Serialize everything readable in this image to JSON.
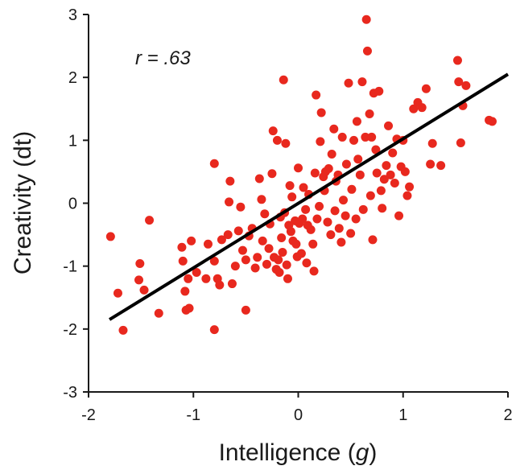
{
  "chart_data": {
    "type": "scatter",
    "title": "",
    "xlabel_prefix": "Intelligence (",
    "xlabel_symbol": "g",
    "xlabel_suffix": ")",
    "ylabel": "Creativity (dt)",
    "annotation_r": "r",
    "annotation_value": " = .63",
    "xlim": [
      -2,
      2
    ],
    "ylim": [
      -3,
      3
    ],
    "x_ticks": [
      {
        "value": -2,
        "label": "-2"
      },
      {
        "value": -1,
        "label": "-1"
      },
      {
        "value": 0,
        "label": "0"
      },
      {
        "value": 1,
        "label": "1"
      },
      {
        "value": 2,
        "label": "2"
      }
    ],
    "y_ticks": [
      {
        "value": -3,
        "label": "-3"
      },
      {
        "value": -2,
        "label": "-2"
      },
      {
        "value": -1,
        "label": "-1"
      },
      {
        "value": 0,
        "label": "0"
      },
      {
        "value": 1,
        "label": "1"
      },
      {
        "value": 2,
        "label": "2"
      },
      {
        "value": 3,
        "label": "3"
      }
    ],
    "grid": false,
    "point_color": "#e8281e",
    "line_color": "#000000",
    "regression_line": {
      "x": [
        -1.8,
        2.0
      ],
      "y": [
        -1.85,
        2.05
      ]
    },
    "points": [
      [
        -1.79,
        -0.53
      ],
      [
        -1.72,
        -1.43
      ],
      [
        -1.67,
        -2.02
      ],
      [
        -1.51,
        -0.96
      ],
      [
        -1.47,
        -1.38
      ],
      [
        -1.42,
        -0.27
      ],
      [
        -1.52,
        -1.22
      ],
      [
        -1.33,
        -1.75
      ],
      [
        -1.11,
        -0.7
      ],
      [
        -1.1,
        -0.92
      ],
      [
        -1.08,
        -1.4
      ],
      [
        -1.07,
        -1.7
      ],
      [
        -1.04,
        -1.67
      ],
      [
        -1.05,
        -1.2
      ],
      [
        -1.02,
        -0.6
      ],
      [
        -0.97,
        -1.1
      ],
      [
        -0.88,
        -1.2
      ],
      [
        -0.86,
        -0.65
      ],
      [
        -0.8,
        -0.92
      ],
      [
        -0.8,
        -2.01
      ],
      [
        -0.8,
        0.63
      ],
      [
        -0.77,
        -1.2
      ],
      [
        -0.75,
        -1.3
      ],
      [
        -0.73,
        -0.58
      ],
      [
        -0.67,
        -0.5
      ],
      [
        -0.66,
        0.02
      ],
      [
        -0.65,
        0.35
      ],
      [
        -0.63,
        -1.28
      ],
      [
        -0.6,
        -1.0
      ],
      [
        -0.57,
        -0.44
      ],
      [
        -0.55,
        -0.06
      ],
      [
        -0.53,
        -0.75
      ],
      [
        -0.5,
        -0.9
      ],
      [
        -0.5,
        -1.7
      ],
      [
        -0.47,
        -0.52
      ],
      [
        -0.44,
        -0.4
      ],
      [
        -0.41,
        -1.03
      ],
      [
        -0.39,
        -0.86
      ],
      [
        -0.37,
        0.39
      ],
      [
        -0.35,
        0.06
      ],
      [
        -0.34,
        -0.6
      ],
      [
        -0.32,
        -0.17
      ],
      [
        -0.3,
        -0.97
      ],
      [
        -0.28,
        -0.72
      ],
      [
        -0.27,
        -0.33
      ],
      [
        -0.25,
        0.47
      ],
      [
        -0.24,
        1.15
      ],
      [
        -0.23,
        -0.86
      ],
      [
        -0.21,
        -1.05
      ],
      [
        -0.2,
        1.0
      ],
      [
        -0.19,
        -0.9
      ],
      [
        -0.18,
        -1.1
      ],
      [
        -0.17,
        -0.22
      ],
      [
        -0.16,
        -0.55
      ],
      [
        -0.15,
        -0.78
      ],
      [
        -0.14,
        1.96
      ],
      [
        -0.13,
        -0.15
      ],
      [
        -0.12,
        0.95
      ],
      [
        -0.11,
        -0.98
      ],
      [
        -0.1,
        -1.2
      ],
      [
        -0.09,
        -0.35
      ],
      [
        -0.08,
        0.28
      ],
      [
        -0.07,
        -0.45
      ],
      [
        -0.06,
        0.1
      ],
      [
        -0.05,
        -0.6
      ],
      [
        -0.03,
        -0.28
      ],
      [
        -0.02,
        -0.65
      ],
      [
        -0.01,
        -0.85
      ],
      [
        0.0,
        0.56
      ],
      [
        0.01,
        -0.32
      ],
      [
        0.03,
        -0.8
      ],
      [
        0.04,
        -0.25
      ],
      [
        0.05,
        0.25
      ],
      [
        0.07,
        -0.1
      ],
      [
        0.08,
        -0.95
      ],
      [
        0.09,
        -0.35
      ],
      [
        0.1,
        0.14
      ],
      [
        0.12,
        -0.42
      ],
      [
        0.14,
        -0.65
      ],
      [
        0.15,
        -1.08
      ],
      [
        0.16,
        0.48
      ],
      [
        0.17,
        1.72
      ],
      [
        0.18,
        -0.25
      ],
      [
        0.2,
        -0.05
      ],
      [
        0.21,
        0.98
      ],
      [
        0.22,
        1.44
      ],
      [
        0.24,
        0.42
      ],
      [
        0.25,
        0.2
      ],
      [
        0.26,
        0.5
      ],
      [
        0.28,
        -0.3
      ],
      [
        0.29,
        0.55
      ],
      [
        0.31,
        -0.5
      ],
      [
        0.32,
        0.78
      ],
      [
        0.34,
        1.18
      ],
      [
        0.35,
        -0.12
      ],
      [
        0.36,
        0.35
      ],
      [
        0.38,
        0.45
      ],
      [
        0.39,
        -0.4
      ],
      [
        0.41,
        -0.62
      ],
      [
        0.42,
        1.05
      ],
      [
        0.43,
        0.05
      ],
      [
        0.45,
        -0.2
      ],
      [
        0.46,
        0.62
      ],
      [
        0.48,
        1.91
      ],
      [
        0.5,
        -0.48
      ],
      [
        0.51,
        0.22
      ],
      [
        0.53,
        1.0
      ],
      [
        0.55,
        -0.25
      ],
      [
        0.56,
        1.3
      ],
      [
        0.57,
        0.7
      ],
      [
        0.59,
        0.45
      ],
      [
        0.61,
        1.93
      ],
      [
        0.62,
        -0.1
      ],
      [
        0.64,
        1.05
      ],
      [
        0.65,
        2.92
      ],
      [
        0.66,
        2.42
      ],
      [
        0.68,
        1.42
      ],
      [
        0.69,
        0.12
      ],
      [
        0.7,
        1.05
      ],
      [
        0.71,
        -0.58
      ],
      [
        0.72,
        1.75
      ],
      [
        0.74,
        0.85
      ],
      [
        0.75,
        0.48
      ],
      [
        0.77,
        1.78
      ],
      [
        0.79,
        0.2
      ],
      [
        0.8,
        -0.08
      ],
      [
        0.82,
        0.38
      ],
      [
        0.84,
        0.6
      ],
      [
        0.86,
        1.23
      ],
      [
        0.88,
        0.45
      ],
      [
        0.9,
        0.8
      ],
      [
        0.92,
        0.32
      ],
      [
        0.94,
        1.02
      ],
      [
        0.96,
        -0.2
      ],
      [
        0.98,
        0.58
      ],
      [
        1.0,
        1.0
      ],
      [
        1.02,
        0.5
      ],
      [
        1.04,
        0.12
      ],
      [
        1.06,
        0.26
      ],
      [
        1.1,
        1.5
      ],
      [
        1.14,
        1.6
      ],
      [
        1.18,
        1.52
      ],
      [
        1.22,
        1.82
      ],
      [
        1.26,
        0.62
      ],
      [
        1.28,
        0.95
      ],
      [
        1.36,
        0.6
      ],
      [
        1.52,
        2.27
      ],
      [
        1.55,
        0.96
      ],
      [
        1.57,
        1.55
      ],
      [
        1.6,
        1.87
      ],
      [
        1.53,
        1.93
      ],
      [
        1.82,
        1.32
      ],
      [
        1.85,
        1.3
      ]
    ]
  }
}
